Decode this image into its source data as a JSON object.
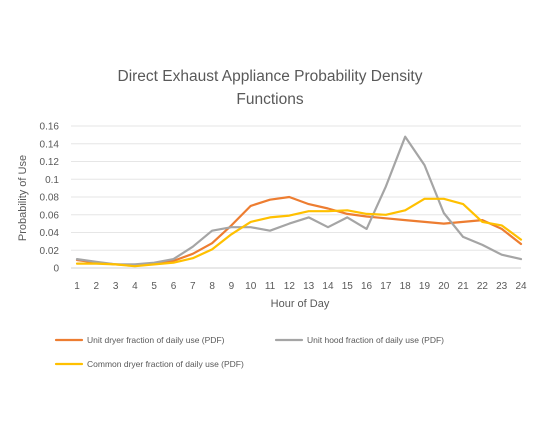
{
  "chart_data": {
    "type": "line",
    "title_lines": [
      "Direct Exhaust Appliance Probability Density",
      "Functions"
    ],
    "xlabel": "Hour of Day",
    "ylabel": "Probability of Use",
    "x": [
      1,
      2,
      3,
      4,
      5,
      6,
      7,
      8,
      9,
      10,
      11,
      12,
      13,
      14,
      15,
      16,
      17,
      18,
      19,
      20,
      21,
      22,
      23,
      24
    ],
    "ylim": [
      0,
      0.16
    ],
    "yticks": [
      0,
      0.02,
      0.04,
      0.06,
      0.08,
      0.1,
      0.12,
      0.14,
      0.16
    ],
    "ytick_labels": [
      "0",
      "0.02",
      "0.04",
      "0.06",
      "0.08",
      "0.1",
      "0.12",
      "0.14",
      "0.16"
    ],
    "grid": true,
    "legend_position": "bottom",
    "series": [
      {
        "name": "Unit dryer fraction of daily use (PDF)",
        "color": "#ED7D31",
        "values": [
          0.009,
          0.006,
          0.004,
          0.003,
          0.005,
          0.008,
          0.016,
          0.028,
          0.048,
          0.07,
          0.077,
          0.08,
          0.072,
          0.067,
          0.061,
          0.058,
          0.056,
          0.054,
          0.052,
          0.05,
          0.052,
          0.054,
          0.044,
          0.027
        ]
      },
      {
        "name": "Unit hood fraction of daily use (PDF)",
        "color": "#A5A5A5",
        "values": [
          0.01,
          0.007,
          0.004,
          0.004,
          0.006,
          0.01,
          0.024,
          0.042,
          0.046,
          0.046,
          0.042,
          0.05,
          0.057,
          0.046,
          0.057,
          0.044,
          0.092,
          0.148,
          0.116,
          0.062,
          0.035,
          0.026,
          0.015,
          0.01
        ]
      },
      {
        "name": "Common dryer fraction of daily use (PDF)",
        "color": "#FFC000",
        "values": [
          0.005,
          0.005,
          0.004,
          0.002,
          0.004,
          0.006,
          0.011,
          0.021,
          0.038,
          0.052,
          0.057,
          0.059,
          0.064,
          0.064,
          0.065,
          0.061,
          0.06,
          0.065,
          0.078,
          0.078,
          0.072,
          0.052,
          0.048,
          0.032
        ]
      }
    ]
  }
}
